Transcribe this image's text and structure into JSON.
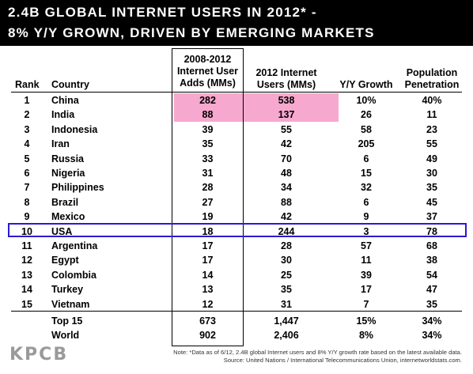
{
  "banner": {
    "line1": "2.4B GLOBAL INTERNET USERS IN 2012* -",
    "line2": "8% Y/Y GROWN, DRIVEN BY EMERGING MARKETS"
  },
  "chart_data": {
    "type": "table",
    "columns": [
      "Rank",
      "Country",
      "2008-2012 Internet User Adds (MMs)",
      "2012 Internet Users (MMs)",
      "Y/Y Growth",
      "Population Penetration"
    ],
    "rows": [
      {
        "rank": "1",
        "country": "China",
        "adds": "282",
        "users": "538",
        "growth": "10%",
        "pen": "40%"
      },
      {
        "rank": "2",
        "country": "India",
        "adds": "88",
        "users": "137",
        "growth": "26",
        "pen": "11"
      },
      {
        "rank": "3",
        "country": "Indonesia",
        "adds": "39",
        "users": "55",
        "growth": "58",
        "pen": "23"
      },
      {
        "rank": "4",
        "country": "Iran",
        "adds": "35",
        "users": "42",
        "growth": "205",
        "pen": "55"
      },
      {
        "rank": "5",
        "country": "Russia",
        "adds": "33",
        "users": "70",
        "growth": "6",
        "pen": "49"
      },
      {
        "rank": "6",
        "country": "Nigeria",
        "adds": "31",
        "users": "48",
        "growth": "15",
        "pen": "30"
      },
      {
        "rank": "7",
        "country": "Philippines",
        "adds": "28",
        "users": "34",
        "growth": "32",
        "pen": "35"
      },
      {
        "rank": "8",
        "country": "Brazil",
        "adds": "27",
        "users": "88",
        "growth": "6",
        "pen": "45"
      },
      {
        "rank": "9",
        "country": "Mexico",
        "adds": "19",
        "users": "42",
        "growth": "9",
        "pen": "37"
      },
      {
        "rank": "10",
        "country": "USA",
        "adds": "18",
        "users": "244",
        "growth": "3",
        "pen": "78"
      },
      {
        "rank": "11",
        "country": "Argentina",
        "adds": "17",
        "users": "28",
        "growth": "57",
        "pen": "68"
      },
      {
        "rank": "12",
        "country": "Egypt",
        "adds": "17",
        "users": "30",
        "growth": "11",
        "pen": "38"
      },
      {
        "rank": "13",
        "country": "Colombia",
        "adds": "14",
        "users": "25",
        "growth": "39",
        "pen": "54"
      },
      {
        "rank": "14",
        "country": "Turkey",
        "adds": "13",
        "users": "35",
        "growth": "17",
        "pen": "47"
      },
      {
        "rank": "15",
        "country": "Vietnam",
        "adds": "12",
        "users": "31",
        "growth": "7",
        "pen": "35"
      }
    ],
    "totals": [
      {
        "label": "Top 15",
        "adds": "673",
        "users": "1,447",
        "growth": "15%",
        "pen": "34%"
      },
      {
        "label": "World",
        "adds": "902",
        "users": "2,406",
        "growth": "8%",
        "pen": "34%"
      }
    ],
    "highlight_color": "#f7a8cf",
    "highlight_rows": [
      "China",
      "India"
    ],
    "boxed_row": "USA",
    "box_color": "#2b1bd1"
  },
  "headers": {
    "rank": "Rank",
    "country": "Country",
    "adds": [
      "2008-2012",
      "Internet User",
      "Adds (MMs)"
    ],
    "users": [
      "2012 Internet",
      "Users (MMs)"
    ],
    "growth": "Y/Y Growth",
    "pen": [
      "Population",
      "Penetration"
    ]
  },
  "logo": "KPCB",
  "notes": {
    "line1": "Note: *Data as of 6/12, 2.4B global Internet users and 8% Y/Y growth rate based on the latest available data.",
    "line2": "Source: United Nations / International Telecommunications Union, internetworldstats.com."
  }
}
